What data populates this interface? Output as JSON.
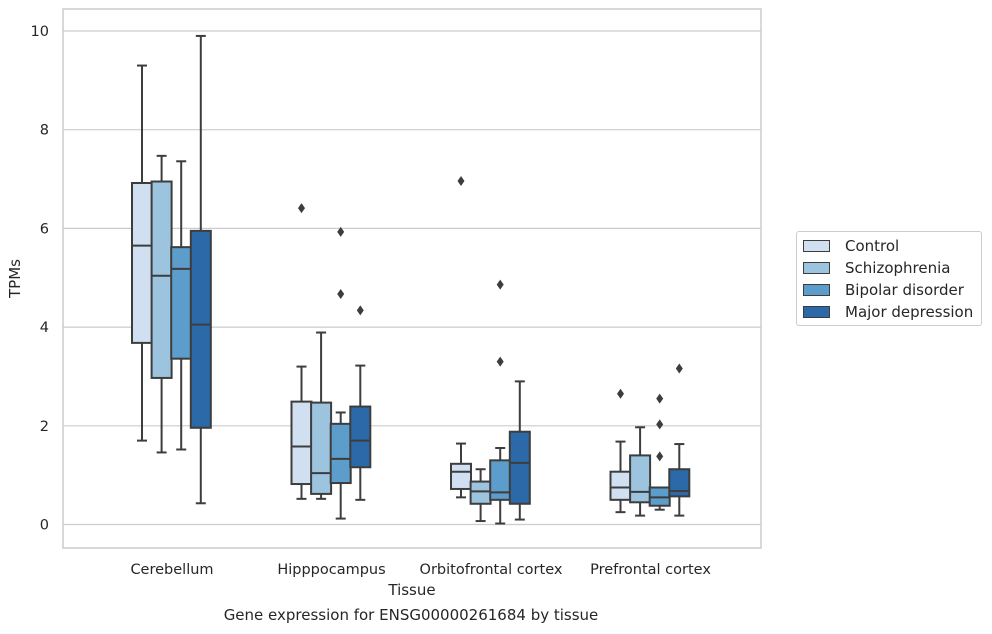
{
  "chart_data": {
    "type": "boxplot",
    "caption": "Gene expression for ENSG00000261684 by tissue",
    "xlabel": "Tissue",
    "ylabel": "TPMs",
    "ylim": [
      -0.45,
      10.4
    ],
    "yticks": [
      0,
      2,
      4,
      6,
      8,
      10
    ],
    "grid": "horizontal",
    "legend_position": "right",
    "categories": [
      "Cerebellum",
      "Hipppocampus",
      "Orbitofrontal cortex",
      "Prefrontal cortex"
    ],
    "series": [
      {
        "name": "Control",
        "color": "#d0e0f1",
        "boxes": [
          {
            "min": 1.7,
            "q1": 3.68,
            "median": 5.65,
            "q3": 6.92,
            "max": 9.3,
            "outliers": []
          },
          {
            "min": 0.52,
            "q1": 0.82,
            "median": 1.58,
            "q3": 2.49,
            "max": 3.2,
            "outliers": [
              6.41
            ]
          },
          {
            "min": 0.55,
            "q1": 0.72,
            "median": 1.07,
            "q3": 1.23,
            "max": 1.64,
            "outliers": [
              6.96
            ]
          },
          {
            "min": 0.25,
            "q1": 0.5,
            "median": 0.75,
            "q3": 1.07,
            "max": 1.68,
            "outliers": [
              2.65
            ]
          }
        ]
      },
      {
        "name": "Schizophrenia",
        "color": "#9cc4de",
        "boxes": [
          {
            "min": 1.46,
            "q1": 2.97,
            "median": 5.04,
            "q3": 6.95,
            "max": 7.47,
            "outliers": []
          },
          {
            "min": 0.52,
            "q1": 0.62,
            "median": 1.04,
            "q3": 2.47,
            "max": 3.89,
            "outliers": []
          },
          {
            "min": 0.07,
            "q1": 0.42,
            "median": 0.67,
            "q3": 0.87,
            "max": 1.12,
            "outliers": []
          },
          {
            "min": 0.18,
            "q1": 0.45,
            "median": 0.66,
            "q3": 1.4,
            "max": 1.97,
            "outliers": []
          }
        ]
      },
      {
        "name": "Bipolar disorder",
        "color": "#5c9dcb",
        "boxes": [
          {
            "min": 1.52,
            "q1": 3.36,
            "median": 5.18,
            "q3": 5.62,
            "max": 7.36,
            "outliers": []
          },
          {
            "min": 0.12,
            "q1": 0.84,
            "median": 1.33,
            "q3": 2.04,
            "max": 2.27,
            "outliers": [
              4.67,
              5.93
            ]
          },
          {
            "min": 0.02,
            "q1": 0.5,
            "median": 0.65,
            "q3": 1.3,
            "max": 1.55,
            "outliers": [
              3.3,
              4.86
            ]
          },
          {
            "min": 0.3,
            "q1": 0.38,
            "median": 0.55,
            "q3": 0.75,
            "max": 0.75,
            "outliers": [
              1.38,
              2.03,
              2.55
            ]
          }
        ]
      },
      {
        "name": "Major depression",
        "color": "#2b69a9",
        "boxes": [
          {
            "min": 0.43,
            "q1": 1.96,
            "median": 4.05,
            "q3": 5.95,
            "max": 9.9,
            "outliers": []
          },
          {
            "min": 0.5,
            "q1": 1.16,
            "median": 1.7,
            "q3": 2.39,
            "max": 3.22,
            "outliers": [
              4.34
            ]
          },
          {
            "min": 0.1,
            "q1": 0.42,
            "median": 1.25,
            "q3": 1.88,
            "max": 2.9,
            "outliers": []
          },
          {
            "min": 0.18,
            "q1": 0.57,
            "median": 0.68,
            "q3": 1.12,
            "max": 1.63,
            "outliers": [
              3.16
            ]
          }
        ]
      }
    ]
  }
}
